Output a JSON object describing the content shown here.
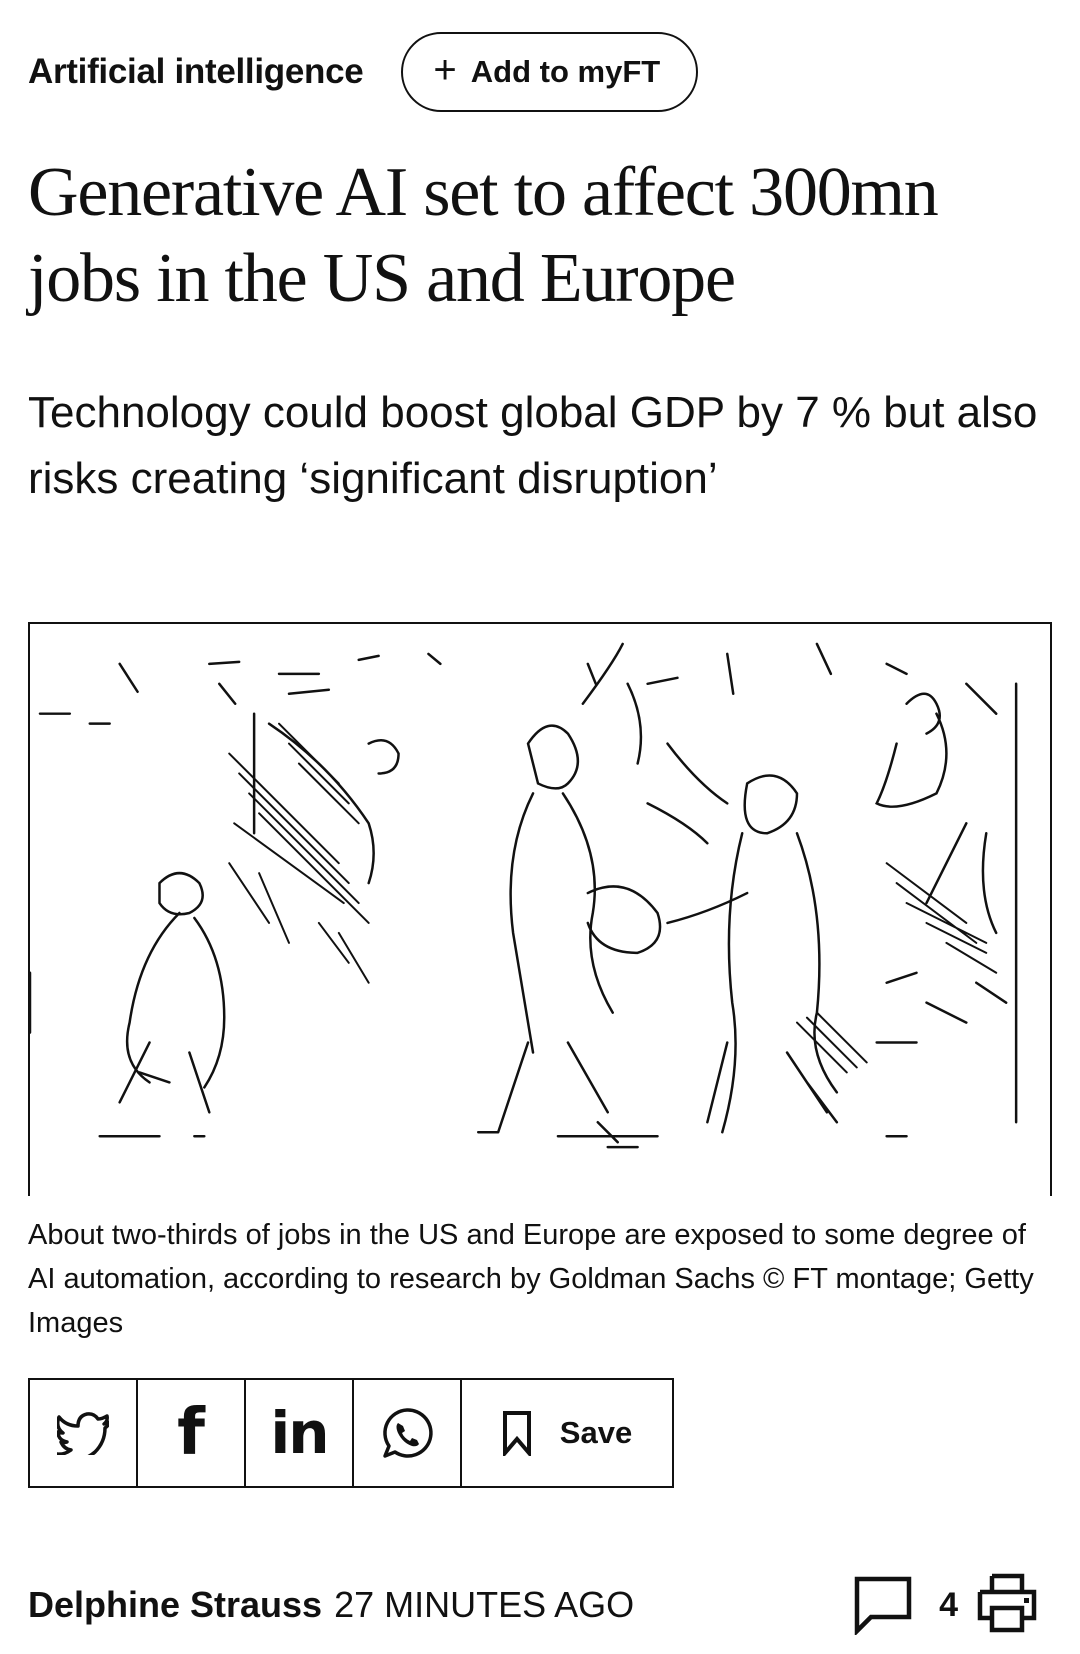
{
  "topic": {
    "label": "Artificial intelligence",
    "myft_button": {
      "plus": "+",
      "label": "Add to myFT"
    }
  },
  "article": {
    "headline": "Generative AI set to affect 300mn jobs in the US and Europe",
    "standfirst": "Technology could boost global GDP by 7 % but also risks creating ‘significant disruption’",
    "caption": "About two-thirds of jobs in the US and Europe are exposed to some degree of AI automation, according to research by Goldman Sachs © FT montage; Getty Images"
  },
  "share": {
    "buttons": [
      {
        "icon": "twitter-icon"
      },
      {
        "icon": "facebook-icon",
        "glyph": "f"
      },
      {
        "icon": "linkedin-icon",
        "glyph": "in"
      },
      {
        "icon": "whatsapp-icon"
      },
      {
        "icon": "bookmark-icon",
        "label": "Save"
      }
    ]
  },
  "byline": {
    "author": "Delphine Strauss",
    "timestamp": "27 MINUTES AGO",
    "comment_count": "4",
    "comment_icon": "comment-icon",
    "print_icon": "print-icon"
  },
  "colors": {
    "text": "#111111",
    "background": "#ffffff"
  }
}
